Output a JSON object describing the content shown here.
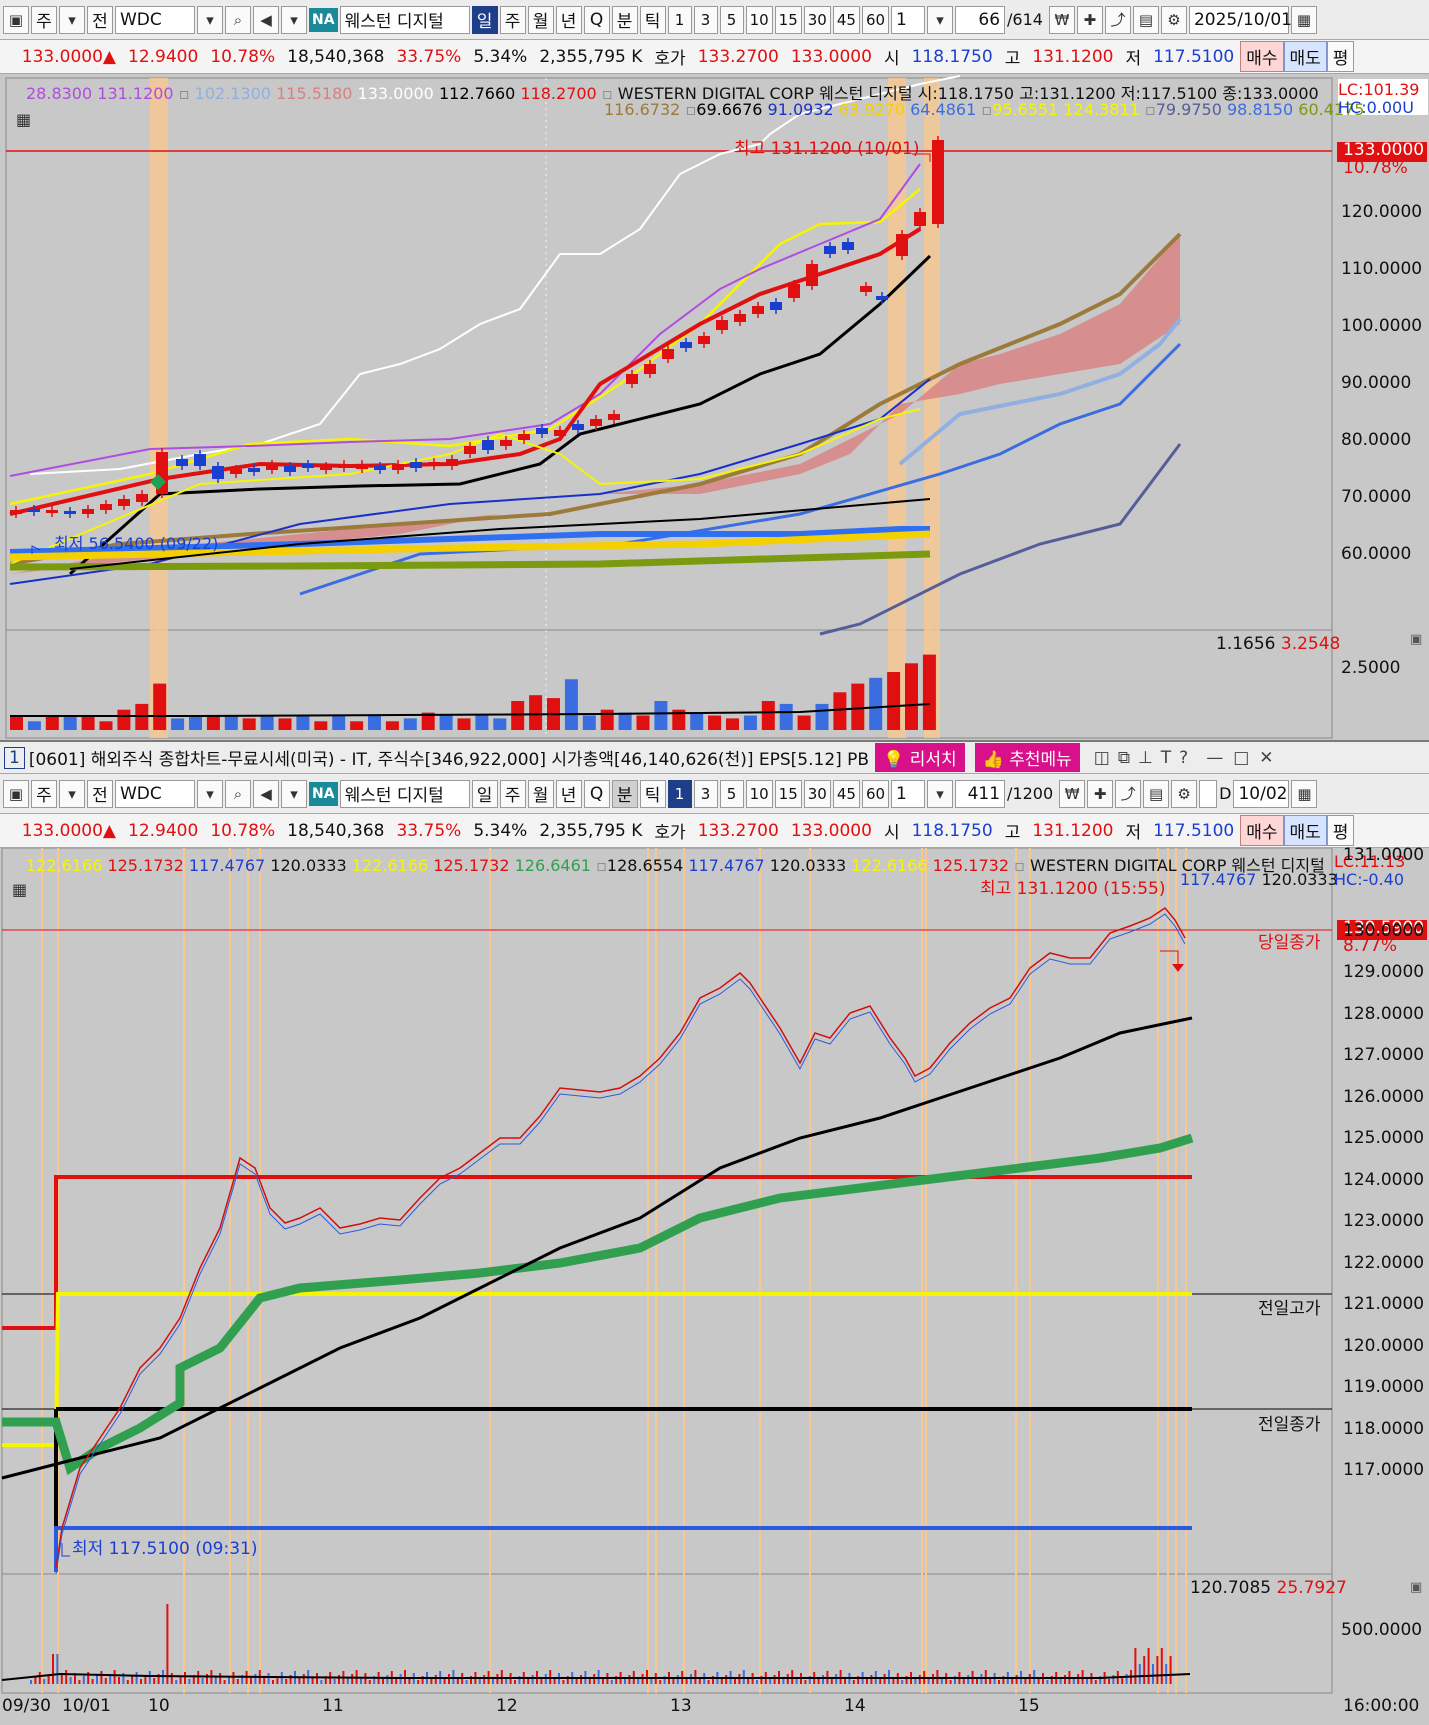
{
  "top": {
    "toolbar": {
      "market": "주",
      "all": "전",
      "symbol": "WDC",
      "name": "웨스턴 디지털",
      "na": "NA",
      "periods": [
        "일",
        "주",
        "월",
        "년",
        "Q"
      ],
      "period_active": "일",
      "minute": "분",
      "tick": "틱",
      "intervals": [
        "1",
        "3",
        "5",
        "10",
        "15",
        "30",
        "45",
        "60"
      ],
      "step": "1",
      "count": "66",
      "total": "/614",
      "date": "2025/10/01"
    },
    "quote": {
      "price": "133.0000",
      "change": "12.9400",
      "change_pct": "10.78%",
      "volume": "18,540,368",
      "vol_ratio": "33.75%",
      "turnover": "5.34%",
      "amount": "2,355,795 K",
      "bidask_label": "호가",
      "bid": "133.2700",
      "ask": "133.0000",
      "open_label": "시",
      "open": "118.1750",
      "high_label": "고",
      "high": "131.1200",
      "low_label": "저",
      "low": "117.5100",
      "buy": "매수",
      "sell": "매도",
      "eval": "평"
    },
    "legend": {
      "row1_pre": [
        "28.8300",
        "131.1200"
      ],
      "row1_b": [
        "102.1300",
        "115.5180"
      ],
      "row1_w": "133.0000",
      "row1_k": "112.7660",
      "row1_r": "118.2700",
      "title": "WESTERN DIGITAL CORP  웨스턴 디지털 시:118.1750 고:131.1200 저:117.5100 종:133.0000",
      "row2": [
        "116.6732",
        "69.6676",
        "91.0932",
        "63.9270",
        "64.4861",
        "95.6551",
        "124.3811",
        "79.9750",
        "98.8150",
        "60.4175"
      ],
      "lc": "LC:101.39",
      "hc": "HC:0.00U"
    },
    "annot": {
      "high": "최고 131.1200 (10/01)",
      "low": "최저 56.5400 (09/22)"
    },
    "yaxis": [
      "120.0000",
      "110.0000",
      "100.0000",
      "90.0000",
      "80.0000",
      "70.0000",
      "60.0000"
    ],
    "price_tag": "133.0000",
    "pct_tag": "10.78%",
    "volume": {
      "v1": "1.1656",
      "v2": "3.2548",
      "axis": "2.5000"
    }
  },
  "divider": {
    "idx": "1",
    "text": "[0601] 해외주식 종합차트-무료시세(미국) - IT, 주식수[346,922,000] 시가총액[46,140,626(천)] EPS[5.12] PB",
    "research": "리서치",
    "menu": "추천메뉴"
  },
  "bottom": {
    "toolbar": {
      "market": "주",
      "all": "전",
      "symbol": "WDC",
      "name": "웨스턴 디지털",
      "na": "NA",
      "periods": [
        "일",
        "주",
        "월",
        "년",
        "Q"
      ],
      "period_active": "분",
      "minute": "분",
      "tick": "틱",
      "intervals": [
        "1",
        "3",
        "5",
        "10",
        "15",
        "30",
        "45",
        "60"
      ],
      "step": "1",
      "count": "411",
      "total": "/1200",
      "d_label": "D",
      "date": "10/02"
    },
    "quote": {
      "price": "133.0000",
      "change": "12.9400",
      "change_pct": "10.78%",
      "volume": "18,540,368",
      "vol_ratio": "33.75%",
      "turnover": "5.34%",
      "amount": "2,355,795 K",
      "bidask_label": "호가",
      "bid": "133.2700",
      "ask": "133.0000",
      "open_label": "시",
      "open": "118.1750",
      "high_label": "고",
      "high": "131.1200",
      "low_label": "저",
      "low": "117.5100",
      "buy": "매수",
      "sell": "매도",
      "eval": "평"
    },
    "legend": {
      "vals": [
        "122.6166",
        "125.1732",
        "117.4767",
        "120.0333",
        "122.6166",
        "125.1732",
        "126.6461",
        "128.6554",
        "117.4767",
        "120.0333",
        "122.6166",
        "125.1732"
      ],
      "title": "WESTERN DIGITAL CORP  웨스턴 디지털",
      "row2": [
        "117.4767",
        "120.0333"
      ],
      "lc": "LC:11.13",
      "hc": "HC:-0.40"
    },
    "annot": {
      "high": "최고 131.1200 (15:55)",
      "low": "최저 117.5100 (09:31)",
      "today_close": "당일종가",
      "prev_high": "전일고가",
      "prev_close": "전일종가"
    },
    "yaxis": [
      "131.0000",
      "130.0000",
      "129.0000",
      "128.0000",
      "127.0000",
      "126.0000",
      "125.0000",
      "124.0000",
      "123.0000",
      "122.0000",
      "121.0000",
      "120.0000",
      "119.0000",
      "118.0000",
      "117.0000"
    ],
    "price_tag": "130.5900",
    "pct_tag": "8.77%",
    "volume": {
      "v1": "120.7085",
      "v2": "25.7927",
      "axis": "500.0000"
    },
    "xaxis": [
      "09/30",
      "10/01",
      "10",
      "11",
      "12",
      "13",
      "14",
      "15",
      "16:00:00"
    ]
  },
  "colors": {
    "accent": "#1f3e8a",
    "up": "#e01010",
    "down": "#1a3fd0",
    "cloud": "#d98080"
  }
}
